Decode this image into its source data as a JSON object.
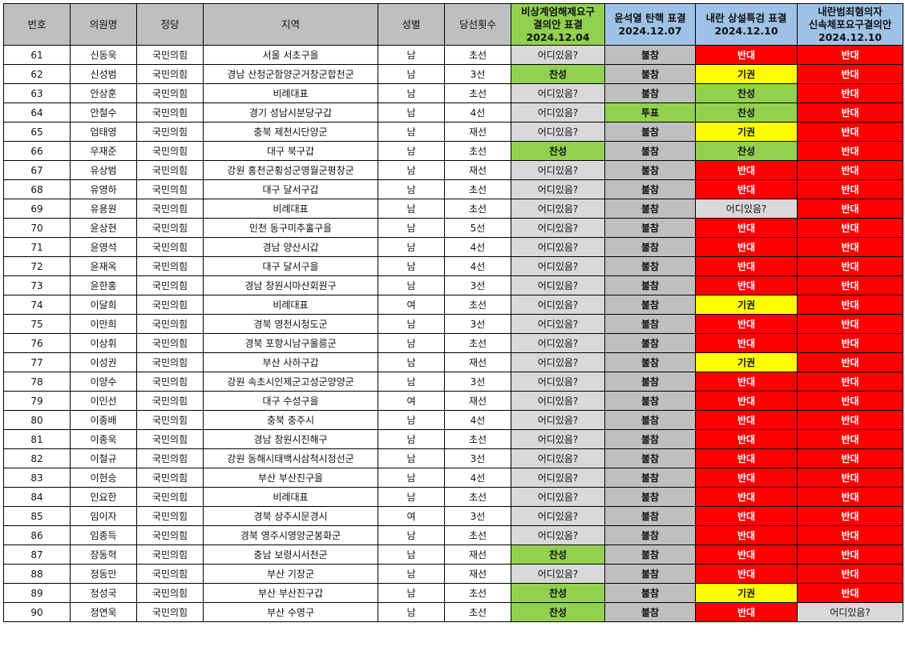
{
  "headers": {
    "no": "번호",
    "name": "의원명",
    "party": "정당",
    "region": "지역",
    "gender": "성별",
    "terms": "당선횟수",
    "col_ca": [
      "비상계엄해제요구",
      "결의안 표결",
      "2024.12.04"
    ],
    "col_sk": [
      "윤석열 탄핵 표결",
      "2024.12.07"
    ],
    "col_sp": [
      "내란 상설특검 표결",
      "2024.12.10"
    ],
    "col_ar": [
      "내란범죄혐의자",
      "신속체포요구결의안",
      "2024.12.10"
    ]
  },
  "vote_colors": {
    "어디있음?": "#d9d9d9",
    "불참": "#bfbfbf",
    "찬성": "#92d050",
    "투표": "#92d050",
    "반대": "#ff0000",
    "기권": "#ffff00"
  },
  "rows": [
    {
      "no": "61",
      "name": "신동욱",
      "party": "국민의힘",
      "region": "서울 서초구을",
      "gender": "남",
      "terms": "초선",
      "ca": "어디있음?",
      "sk": "불참",
      "sp": "반대",
      "ar": "반대"
    },
    {
      "no": "62",
      "name": "신성범",
      "party": "국민의힘",
      "region": "경남 산청군함양군거창군합천군",
      "gender": "남",
      "terms": "3선",
      "ca": "찬성",
      "sk": "불참",
      "sp": "기권",
      "ar": "반대"
    },
    {
      "no": "63",
      "name": "안상훈",
      "party": "국민의힘",
      "region": "비례대표",
      "gender": "남",
      "terms": "초선",
      "ca": "어디있음?",
      "sk": "불참",
      "sp": "찬성",
      "ar": "반대"
    },
    {
      "no": "64",
      "name": "안철수",
      "party": "국민의힘",
      "region": "경기 성남시분당구갑",
      "gender": "남",
      "terms": "4선",
      "ca": "어디있음?",
      "sk": "투표",
      "sp": "찬성",
      "ar": "반대"
    },
    {
      "no": "65",
      "name": "엄태영",
      "party": "국민의힘",
      "region": "충북 제천시단양군",
      "gender": "남",
      "terms": "재선",
      "ca": "어디있음?",
      "sk": "불참",
      "sp": "기권",
      "ar": "반대"
    },
    {
      "no": "66",
      "name": "우재준",
      "party": "국민의힘",
      "region": "대구 북구갑",
      "gender": "남",
      "terms": "초선",
      "ca": "찬성",
      "sk": "불참",
      "sp": "찬성",
      "ar": "반대"
    },
    {
      "no": "67",
      "name": "유상범",
      "party": "국민의힘",
      "region": "강원 홍천군횡성군영월군평창군",
      "gender": "남",
      "terms": "재선",
      "ca": "어디있음?",
      "sk": "불참",
      "sp": "반대",
      "ar": "반대"
    },
    {
      "no": "68",
      "name": "유영하",
      "party": "국민의힘",
      "region": "대구 달서구갑",
      "gender": "남",
      "terms": "초선",
      "ca": "어디있음?",
      "sk": "불참",
      "sp": "반대",
      "ar": "반대"
    },
    {
      "no": "69",
      "name": "유용원",
      "party": "국민의힘",
      "region": "비례대표",
      "gender": "남",
      "terms": "초선",
      "ca": "어디있음?",
      "sk": "불참",
      "sp": "어디있음?",
      "ar": "반대"
    },
    {
      "no": "70",
      "name": "윤상현",
      "party": "국민의힘",
      "region": "인천 동구미추홀구을",
      "gender": "남",
      "terms": "5선",
      "ca": "어디있음?",
      "sk": "불참",
      "sp": "반대",
      "ar": "반대"
    },
    {
      "no": "71",
      "name": "윤영석",
      "party": "국민의힘",
      "region": "경남 양산시갑",
      "gender": "남",
      "terms": "4선",
      "ca": "어디있음?",
      "sk": "불참",
      "sp": "반대",
      "ar": "반대"
    },
    {
      "no": "72",
      "name": "윤재옥",
      "party": "국민의힘",
      "region": "대구 달서구을",
      "gender": "남",
      "terms": "4선",
      "ca": "어디있음?",
      "sk": "불참",
      "sp": "반대",
      "ar": "반대"
    },
    {
      "no": "73",
      "name": "윤한홍",
      "party": "국민의힘",
      "region": "경남 창원시마산회원구",
      "gender": "남",
      "terms": "3선",
      "ca": "어디있음?",
      "sk": "불참",
      "sp": "반대",
      "ar": "반대"
    },
    {
      "no": "74",
      "name": "이달희",
      "party": "국민의힘",
      "region": "비례대표",
      "gender": "여",
      "terms": "초선",
      "ca": "어디있음?",
      "sk": "불참",
      "sp": "기권",
      "ar": "반대"
    },
    {
      "no": "75",
      "name": "이만희",
      "party": "국민의힘",
      "region": "경북 영천시청도군",
      "gender": "남",
      "terms": "3선",
      "ca": "어디있음?",
      "sk": "불참",
      "sp": "반대",
      "ar": "반대"
    },
    {
      "no": "76",
      "name": "이상휘",
      "party": "국민의힘",
      "region": "경북 포항시남구울릉군",
      "gender": "남",
      "terms": "초선",
      "ca": "어디있음?",
      "sk": "불참",
      "sp": "반대",
      "ar": "반대"
    },
    {
      "no": "77",
      "name": "이성권",
      "party": "국민의힘",
      "region": "부산 사하구갑",
      "gender": "남",
      "terms": "재선",
      "ca": "어디있음?",
      "sk": "불참",
      "sp": "기권",
      "ar": "반대"
    },
    {
      "no": "78",
      "name": "이양수",
      "party": "국민의힘",
      "region": "강원 속초시인제군고성군양양군",
      "gender": "남",
      "terms": "3선",
      "ca": "어디있음?",
      "sk": "불참",
      "sp": "반대",
      "ar": "반대"
    },
    {
      "no": "79",
      "name": "이인선",
      "party": "국민의힘",
      "region": "대구 수성구을",
      "gender": "여",
      "terms": "재선",
      "ca": "어디있음?",
      "sk": "불참",
      "sp": "반대",
      "ar": "반대"
    },
    {
      "no": "80",
      "name": "이종배",
      "party": "국민의힘",
      "region": "충북 충주시",
      "gender": "남",
      "terms": "4선",
      "ca": "어디있음?",
      "sk": "불참",
      "sp": "반대",
      "ar": "반대"
    },
    {
      "no": "81",
      "name": "이종욱",
      "party": "국민의힘",
      "region": "경남 창원시진해구",
      "gender": "남",
      "terms": "초선",
      "ca": "어디있음?",
      "sk": "불참",
      "sp": "반대",
      "ar": "반대"
    },
    {
      "no": "82",
      "name": "이철규",
      "party": "국민의힘",
      "region": "강원 동해시태백시삼척시정선군",
      "gender": "남",
      "terms": "3선",
      "ca": "어디있음?",
      "sk": "불참",
      "sp": "반대",
      "ar": "반대"
    },
    {
      "no": "83",
      "name": "이헌승",
      "party": "국민의힘",
      "region": "부산 부산진구을",
      "gender": "남",
      "terms": "4선",
      "ca": "어디있음?",
      "sk": "불참",
      "sp": "반대",
      "ar": "반대"
    },
    {
      "no": "84",
      "name": "인요한",
      "party": "국민의힘",
      "region": "비례대표",
      "gender": "남",
      "terms": "초선",
      "ca": "어디있음?",
      "sk": "불참",
      "sp": "반대",
      "ar": "반대"
    },
    {
      "no": "85",
      "name": "임이자",
      "party": "국민의힘",
      "region": "경북 상주시문경시",
      "gender": "여",
      "terms": "3선",
      "ca": "어디있음?",
      "sk": "불참",
      "sp": "반대",
      "ar": "반대"
    },
    {
      "no": "86",
      "name": "임종득",
      "party": "국민의힘",
      "region": "경북 영주시영양군봉화군",
      "gender": "남",
      "terms": "초선",
      "ca": "어디있음?",
      "sk": "불참",
      "sp": "반대",
      "ar": "반대"
    },
    {
      "no": "87",
      "name": "장동혁",
      "party": "국민의힘",
      "region": "충남 보령시서천군",
      "gender": "남",
      "terms": "재선",
      "ca": "찬성",
      "sk": "불참",
      "sp": "반대",
      "ar": "반대"
    },
    {
      "no": "88",
      "name": "정동만",
      "party": "국민의힘",
      "region": "부산 기장군",
      "gender": "남",
      "terms": "재선",
      "ca": "어디있음?",
      "sk": "불참",
      "sp": "반대",
      "ar": "반대"
    },
    {
      "no": "89",
      "name": "정성국",
      "party": "국민의힘",
      "region": "부산 부산진구갑",
      "gender": "남",
      "terms": "초선",
      "ca": "찬성",
      "sk": "불참",
      "sp": "기권",
      "ar": "반대"
    },
    {
      "no": "90",
      "name": "정연욱",
      "party": "국민의힘",
      "region": "부산 수영구",
      "gender": "남",
      "terms": "초선",
      "ca": "찬성",
      "sk": "불참",
      "sp": "반대",
      "ar": "어디있음?"
    }
  ]
}
